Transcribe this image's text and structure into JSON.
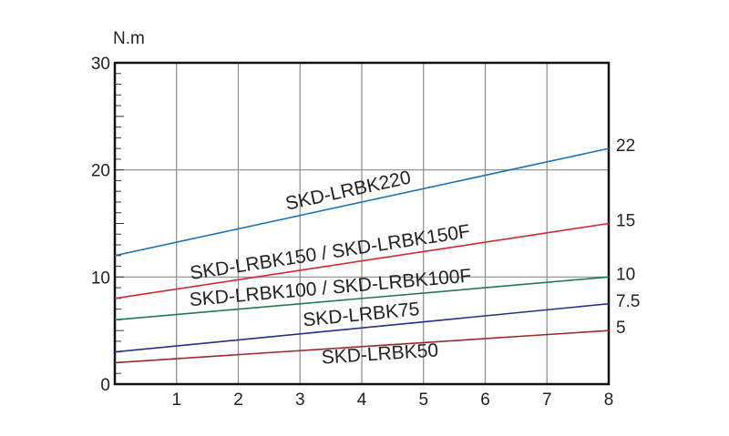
{
  "chart_data": {
    "type": "line",
    "ylabel": "N.m",
    "xlim": [
      0,
      8
    ],
    "ylim": [
      0,
      30
    ],
    "x_ticks": [
      1,
      2,
      3,
      4,
      5,
      6,
      7,
      8
    ],
    "y_ticks": [
      0,
      10,
      20,
      30
    ],
    "grid": true,
    "series": [
      {
        "name": "SKD-LRBK220",
        "x": [
          0,
          8
        ],
        "y": [
          12,
          22
        ],
        "end_label": "22",
        "color": "#1a72b8"
      },
      {
        "name": "SKD-LRBK150 / SKD-LRBK150F",
        "x": [
          0,
          8
        ],
        "y": [
          8,
          15
        ],
        "end_label": "15",
        "color": "#d7262f"
      },
      {
        "name": "SKD-LRBK100 / SKD-LRBK100F",
        "x": [
          0,
          8
        ],
        "y": [
          6,
          10
        ],
        "end_label": "10",
        "color": "#1e7a4f"
      },
      {
        "name": "SKD-LRBK75",
        "x": [
          0,
          8
        ],
        "y": [
          3,
          7.5
        ],
        "end_label": "7.5",
        "color": "#1f2f8c"
      },
      {
        "name": "SKD-LRBK50",
        "x": [
          0,
          8
        ],
        "y": [
          2,
          5
        ],
        "end_label": "5",
        "color": "#9b2a2a"
      }
    ]
  }
}
